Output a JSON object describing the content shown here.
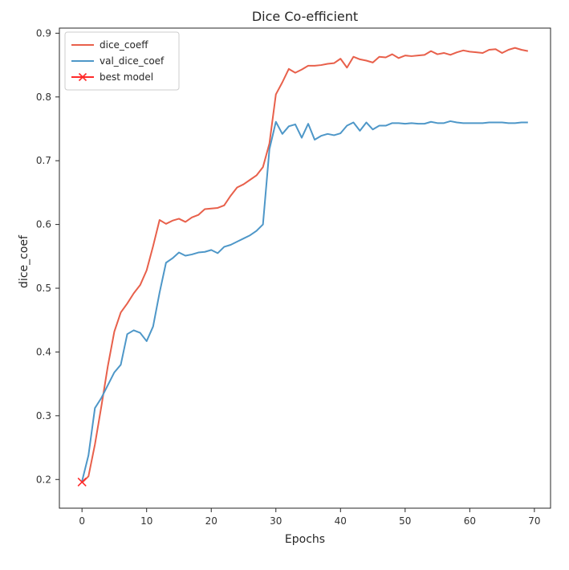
{
  "chart_data": {
    "type": "line",
    "title": "Dice Co-efficient",
    "xlabel": "Epochs",
    "ylabel": "dice_coef",
    "xlim": [
      -3.5,
      72.5
    ],
    "ylim": [
      0.155,
      0.908
    ],
    "xticks": [
      0,
      10,
      20,
      30,
      40,
      50,
      60,
      70
    ],
    "yticks": [
      0.2,
      0.3,
      0.4,
      0.5,
      0.6,
      0.7,
      0.8,
      0.9
    ],
    "xtick_labels": [
      "0",
      "10",
      "20",
      "30",
      "40",
      "50",
      "60",
      "70"
    ],
    "ytick_labels": [
      "0.2",
      "0.3",
      "0.4",
      "0.5",
      "0.6",
      "0.7",
      "0.8",
      "0.9"
    ],
    "grid": false,
    "legend_position": "top-left",
    "series": [
      {
        "name": "dice_coeff",
        "color": "#e8604b",
        "x": [
          0,
          1,
          2,
          3,
          4,
          5,
          6,
          7,
          8,
          9,
          10,
          11,
          12,
          13,
          14,
          15,
          16,
          17,
          18,
          19,
          20,
          21,
          22,
          23,
          24,
          25,
          26,
          27,
          28,
          29,
          30,
          31,
          32,
          33,
          34,
          35,
          36,
          37,
          38,
          39,
          40,
          41,
          42,
          43,
          44,
          45,
          46,
          47,
          48,
          49,
          50,
          51,
          52,
          53,
          54,
          55,
          56,
          57,
          58,
          59,
          60,
          61,
          62,
          63,
          64,
          65,
          66,
          67,
          68,
          69
        ],
        "values": [
          0.195,
          0.205,
          0.255,
          0.315,
          0.378,
          0.432,
          0.462,
          0.476,
          0.492,
          0.505,
          0.528,
          0.566,
          0.607,
          0.601,
          0.606,
          0.609,
          0.604,
          0.611,
          0.615,
          0.624,
          0.625,
          0.626,
          0.63,
          0.645,
          0.658,
          0.663,
          0.67,
          0.677,
          0.69,
          0.727,
          0.804,
          0.823,
          0.844,
          0.838,
          0.843,
          0.849,
          0.849,
          0.85,
          0.852,
          0.853,
          0.86,
          0.846,
          0.863,
          0.859,
          0.857,
          0.854,
          0.863,
          0.862,
          0.867,
          0.861,
          0.865,
          0.864,
          0.865,
          0.866,
          0.872,
          0.867,
          0.869,
          0.866,
          0.87,
          0.873,
          0.871,
          0.87,
          0.869,
          0.874,
          0.875,
          0.869,
          0.874,
          0.877,
          0.874,
          0.872
        ]
      },
      {
        "name": "val_dice_coef",
        "color": "#4e97c8",
        "x": [
          0,
          1,
          2,
          3,
          4,
          5,
          6,
          7,
          8,
          9,
          10,
          11,
          12,
          13,
          14,
          15,
          16,
          17,
          18,
          19,
          20,
          21,
          22,
          23,
          24,
          25,
          26,
          27,
          28,
          29,
          30,
          31,
          32,
          33,
          34,
          35,
          36,
          37,
          38,
          39,
          40,
          41,
          42,
          43,
          44,
          45,
          46,
          47,
          48,
          49,
          50,
          51,
          52,
          53,
          54,
          55,
          56,
          57,
          58,
          59,
          60,
          61,
          62,
          63,
          64,
          65,
          66,
          67,
          68,
          69
        ],
        "values": [
          0.197,
          0.238,
          0.312,
          0.328,
          0.348,
          0.368,
          0.38,
          0.428,
          0.434,
          0.43,
          0.417,
          0.44,
          0.493,
          0.54,
          0.547,
          0.556,
          0.551,
          0.553,
          0.556,
          0.557,
          0.56,
          0.555,
          0.565,
          0.568,
          0.573,
          0.578,
          0.583,
          0.59,
          0.6,
          0.718,
          0.761,
          0.742,
          0.754,
          0.757,
          0.736,
          0.758,
          0.733,
          0.739,
          0.742,
          0.74,
          0.743,
          0.755,
          0.76,
          0.747,
          0.76,
          0.749,
          0.755,
          0.755,
          0.759,
          0.759,
          0.758,
          0.759,
          0.758,
          0.758,
          0.761,
          0.759,
          0.759,
          0.762,
          0.76,
          0.759,
          0.759,
          0.759,
          0.759,
          0.76,
          0.76,
          0.76,
          0.759,
          0.759,
          0.76,
          0.76
        ]
      },
      {
        "name": "best model",
        "color": "#ff2a2a",
        "marker": "x",
        "x": [
          0
        ],
        "values": [
          0.196
        ]
      }
    ]
  }
}
